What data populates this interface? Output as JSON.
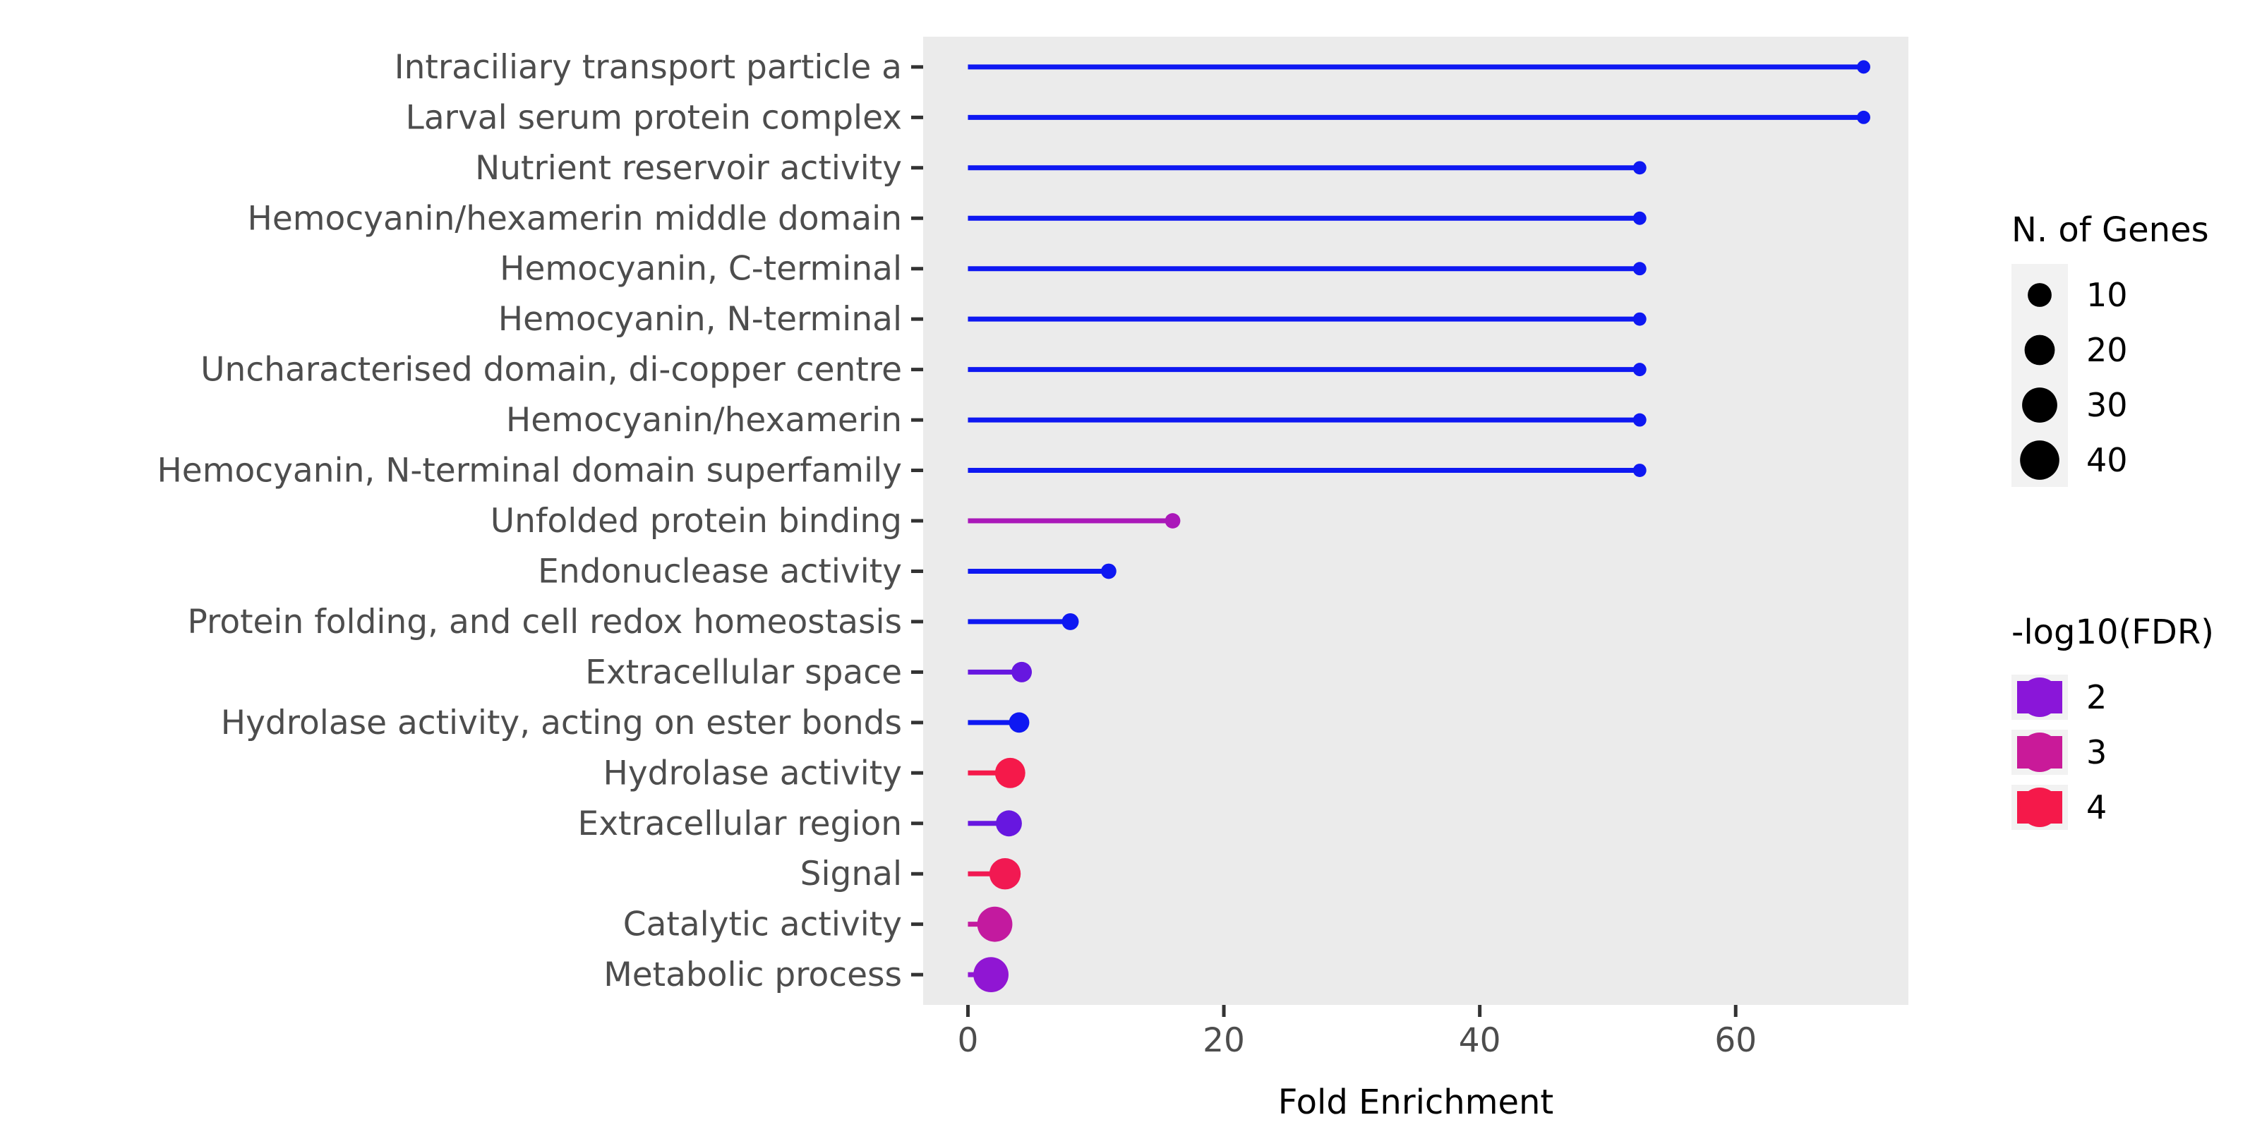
{
  "chart_data": {
    "type": "lollipop",
    "xlabel": "Fold Enrichment",
    "ylabel": "",
    "xlim": [
      -3.5,
      73.5
    ],
    "xticks": [
      0,
      20,
      40,
      60
    ],
    "grid": false,
    "background": "#ebebeb",
    "points": [
      {
        "category": "Intraciliary transport particle a",
        "fold": 70.0,
        "genes": 1,
        "fdr": 1.3
      },
      {
        "category": "Larval serum protein complex",
        "fold": 70.0,
        "genes": 1,
        "fdr": 1.3
      },
      {
        "category": "Nutrient reservoir activity",
        "fold": 52.5,
        "genes": 1,
        "fdr": 1.3
      },
      {
        "category": "Hemocyanin/hexamerin middle domain",
        "fold": 52.5,
        "genes": 1,
        "fdr": 1.3
      },
      {
        "category": "Hemocyanin, C-terminal",
        "fold": 52.5,
        "genes": 1,
        "fdr": 1.3
      },
      {
        "category": "Hemocyanin, N-terminal",
        "fold": 52.5,
        "genes": 1,
        "fdr": 1.3
      },
      {
        "category": "Uncharacterised domain, di-copper centre",
        "fold": 52.5,
        "genes": 1,
        "fdr": 1.3
      },
      {
        "category": "Hemocyanin/hexamerin",
        "fold": 52.5,
        "genes": 1,
        "fdr": 1.3
      },
      {
        "category": "Hemocyanin, N-terminal domain superfamily",
        "fold": 52.5,
        "genes": 1,
        "fdr": 1.3
      },
      {
        "category": "Unfolded protein binding",
        "fold": 16.0,
        "genes": 2,
        "fdr": 2.5
      },
      {
        "category": "Endonuclease activity",
        "fold": 11.0,
        "genes": 2,
        "fdr": 1.3
      },
      {
        "category": "Protein folding, and cell redox homeostasis",
        "fold": 8.0,
        "genes": 3,
        "fdr": 1.3
      },
      {
        "category": "Extracellular space",
        "fold": 4.2,
        "genes": 6,
        "fdr": 1.8
      },
      {
        "category": "Hydrolase activity, acting on ester bonds",
        "fold": 4.0,
        "genes": 6,
        "fdr": 1.3
      },
      {
        "category": "Hydrolase activity",
        "fold": 3.3,
        "genes": 20,
        "fdr": 4.0
      },
      {
        "category": "Extracellular region",
        "fold": 3.2,
        "genes": 13,
        "fdr": 1.8
      },
      {
        "category": "Signal",
        "fold": 2.9,
        "genes": 22,
        "fdr": 3.9
      },
      {
        "category": "Catalytic activity",
        "fold": 2.1,
        "genes": 30,
        "fdr": 2.9
      },
      {
        "category": "Metabolic process",
        "fold": 1.8,
        "genes": 30,
        "fdr": 2.1
      }
    ],
    "legend_size": {
      "title": "N. of Genes",
      "placement": "right",
      "entries": [
        {
          "label": "10",
          "genes": 10
        },
        {
          "label": "20",
          "genes": 20
        },
        {
          "label": "30",
          "genes": 30
        },
        {
          "label": "40",
          "genes": 40
        }
      ]
    },
    "legend_color": {
      "title": "-log10(FDR)",
      "placement": "right",
      "entries": [
        {
          "label": "2",
          "value": 2,
          "color": "#8a16d9"
        },
        {
          "label": "3",
          "value": 3,
          "color": "#c91a99"
        },
        {
          "label": "4",
          "value": 4,
          "color": "#f5194a"
        }
      ],
      "gradient": [
        {
          "value": 1.3,
          "color": "#0e18f2"
        },
        {
          "value": 2,
          "color": "#8a16d9"
        },
        {
          "value": 3,
          "color": "#c91a99"
        },
        {
          "value": 4,
          "color": "#f5194a"
        }
      ]
    }
  }
}
